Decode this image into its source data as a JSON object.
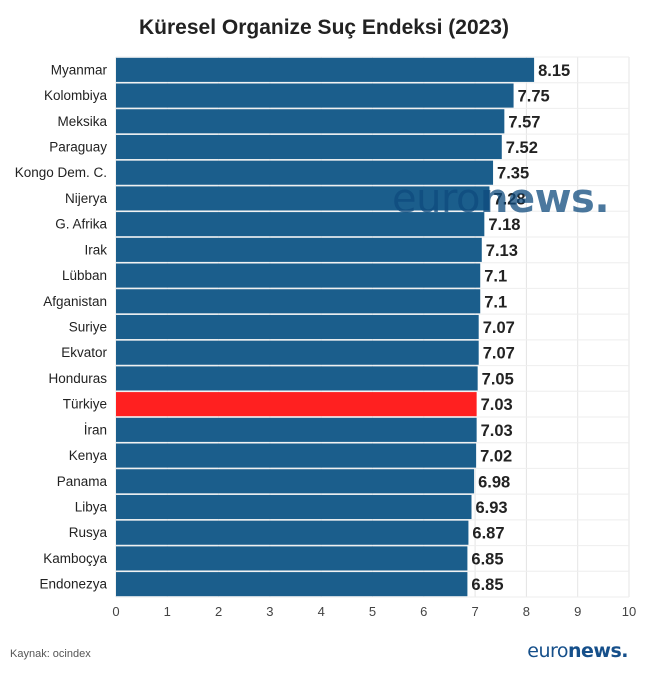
{
  "chart_data": {
    "type": "bar",
    "orientation": "horizontal",
    "title": "Küresel Organize Suç Endeksi (2023)",
    "xlabel": "",
    "ylabel": "",
    "xlim": [
      0,
      10
    ],
    "xticks": [
      "0",
      "1",
      "2",
      "3",
      "4",
      "5",
      "6",
      "7",
      "8",
      "9",
      "10"
    ],
    "grid": true,
    "categories": [
      "Myanmar",
      "Kolombiya",
      "Meksika",
      "Paraguay",
      "Kongo Dem. C.",
      "Nijerya",
      "G. Afrika",
      "Irak",
      "Lübban",
      "Afganistan",
      "Suriye",
      "Ekvator",
      "Honduras",
      "Türkiye",
      "İran",
      "Kenya",
      "Panama",
      "Libya",
      "Rusya",
      "Kamboçya",
      "Endonezya"
    ],
    "values": [
      8.15,
      7.75,
      7.57,
      7.52,
      7.35,
      7.28,
      7.18,
      7.13,
      7.1,
      7.1,
      7.07,
      7.07,
      7.05,
      7.03,
      7.03,
      7.02,
      6.98,
      6.93,
      6.87,
      6.85,
      6.85
    ],
    "value_labels": [
      "8.15",
      "7.75",
      "7.57",
      "7.52",
      "7.35",
      "7.28",
      "7.18",
      "7.13",
      "7.1",
      "7.1",
      "7.07",
      "7.07",
      "7.05",
      "7.03",
      "7.03",
      "7.02",
      "6.98",
      "6.93",
      "6.87",
      "6.85",
      "6.85"
    ],
    "highlight": "Türkiye",
    "colors": {
      "bar": "#1b5e8c",
      "highlight": "#ff2020",
      "grid": "#e4e4e4",
      "label": "#222222",
      "tick": "#444444"
    }
  },
  "source": "Kaynak: ocindex",
  "watermark": {
    "part1": "euro",
    "part2": "news."
  },
  "footer_logo": {
    "part1": "euro",
    "part2": "news."
  }
}
